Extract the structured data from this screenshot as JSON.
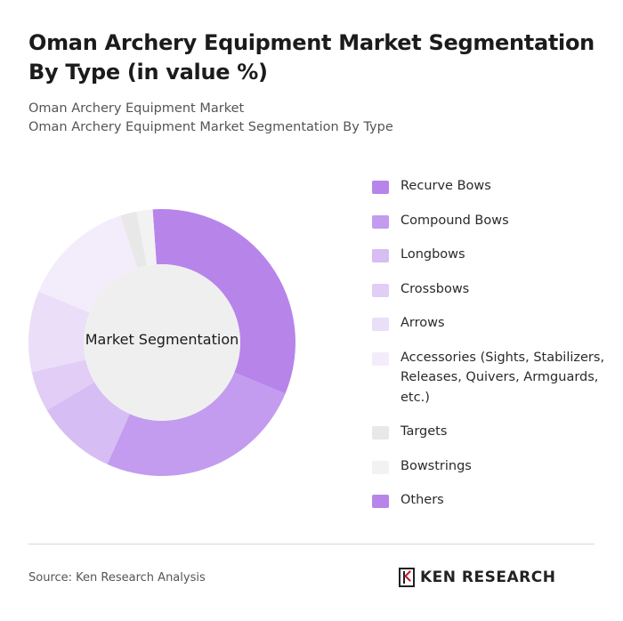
{
  "header": {
    "title": "Oman Archery Equipment Market Segmentation By Type (in value %)",
    "subtitle_line1": "Oman Archery Equipment Market",
    "subtitle_line2": "Oman Archery Equipment Market Segmentation By Type"
  },
  "chart_data": {
    "type": "pie",
    "style": "donut",
    "center_label": "Market Segmentation",
    "legend_position": "right",
    "categories": [
      "Recurve Bows",
      "Compound Bows",
      "Longbows",
      "Crossbows",
      "Arrows",
      "Accessories (Sights, Stabilizers, Releases, Quivers, Armguards, etc.)",
      "Targets",
      "Bowstrings",
      "Others"
    ],
    "values": [
      33,
      26,
      10,
      5,
      10,
      14,
      2,
      2,
      0
    ],
    "colors": [
      "#b784ea",
      "#c39bef",
      "#d6bdf3",
      "#e1cdf6",
      "#eadef8",
      "#f3ecfb",
      "#e8e8e8",
      "#f2f2f2",
      "#b784ea"
    ]
  },
  "footer": {
    "source": "Source: Ken Research Analysis",
    "logo_text": "KEN RESEARCH"
  }
}
